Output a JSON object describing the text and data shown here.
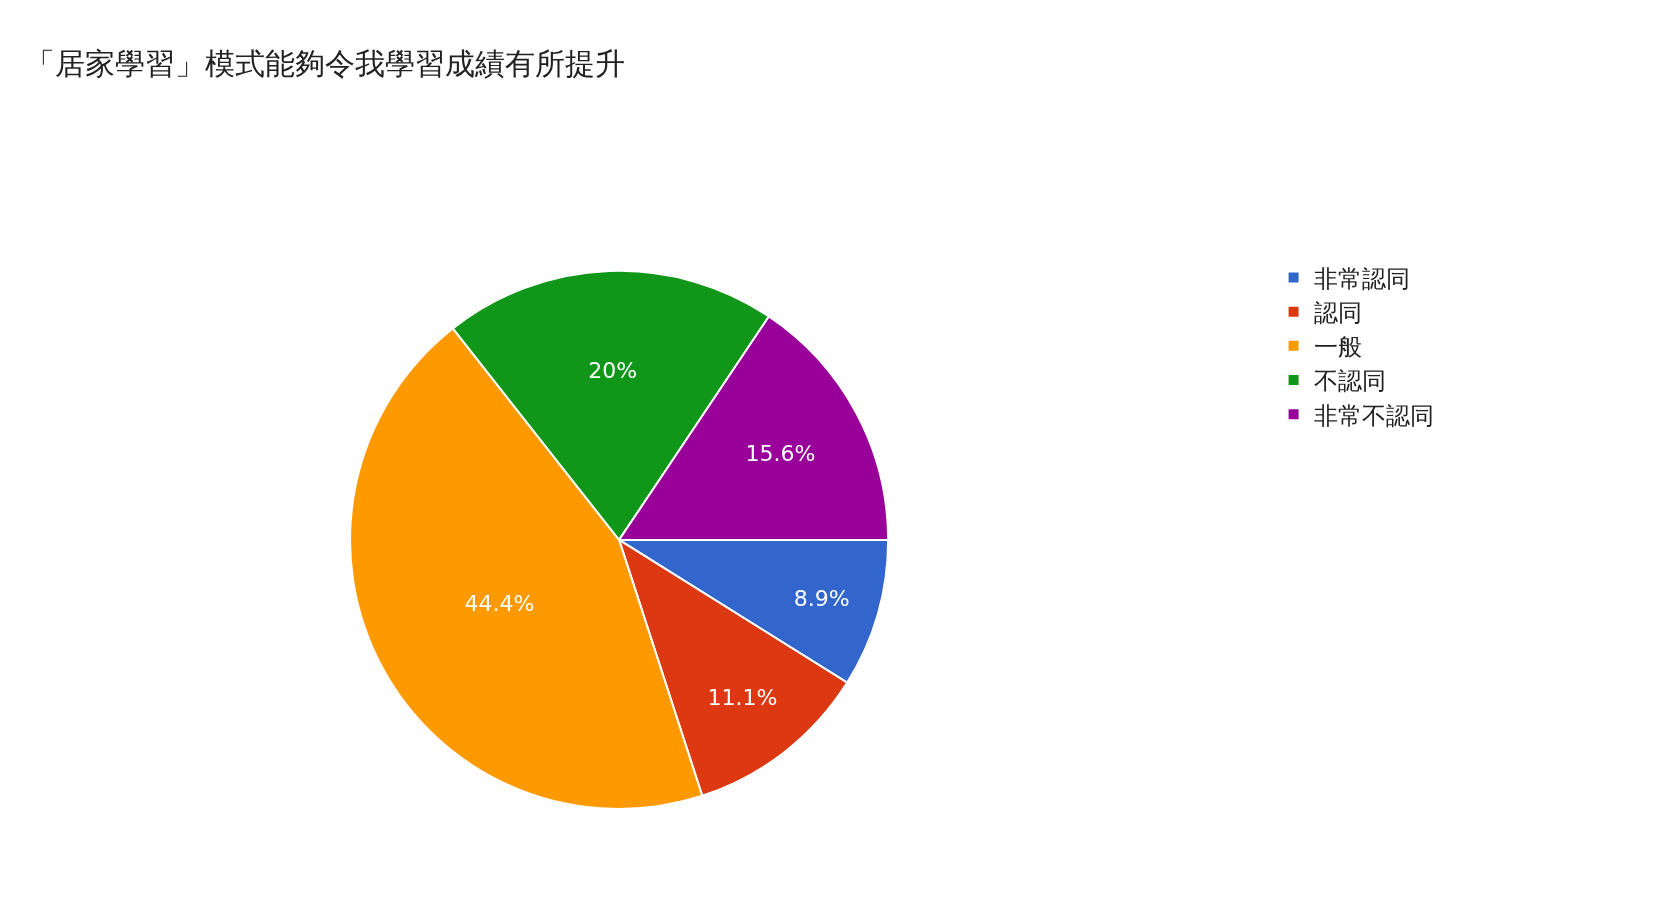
{
  "chart_data": {
    "type": "pie",
    "title": "「居家學習」模式能夠令我學習成績有所提升",
    "categories": [
      "非常認同",
      "認同",
      "一般",
      "不認同",
      "非常不認同"
    ],
    "values": [
      8.9,
      11.1,
      44.4,
      20,
      15.6
    ],
    "value_labels": [
      "8.9%",
      "11.1%",
      "44.4%",
      "20%",
      "15.6%"
    ],
    "colors": [
      "#3366cc",
      "#dc3912",
      "#ff9900",
      "#109618",
      "#990099"
    ],
    "legend": "right"
  }
}
